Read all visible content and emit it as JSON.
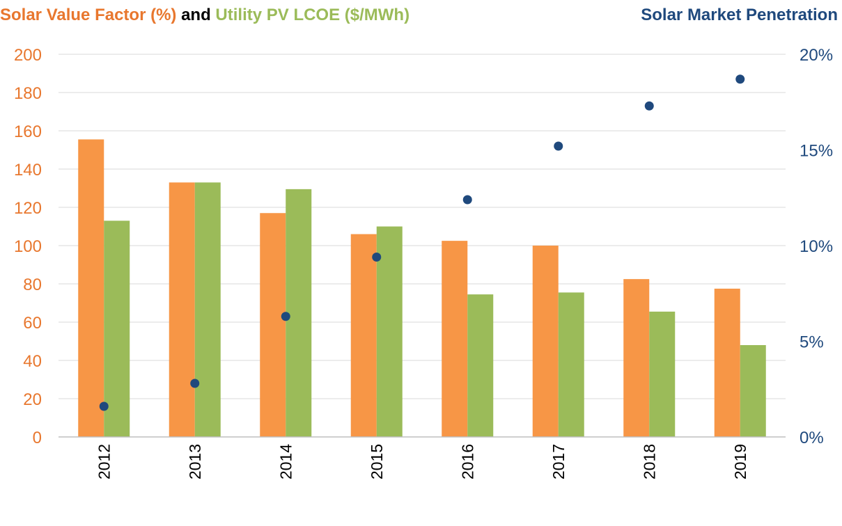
{
  "chart_data": {
    "type": "bar",
    "title_left": [
      {
        "text": "Solar Value Factor (%)",
        "color": "#E8772E"
      },
      {
        "text": " and ",
        "color": "#000000"
      },
      {
        "text": "Utility PV LCOE ($/MWh)",
        "color": "#9BBB59"
      }
    ],
    "title_right": {
      "text": "Solar Market Penetration",
      "color": "#1F497D"
    },
    "categories": [
      "2012",
      "2013",
      "2014",
      "2015",
      "2016",
      "2017",
      "2018",
      "2019"
    ],
    "series": [
      {
        "name": "Solar Value Factor (%)",
        "type": "bar",
        "axis": "left",
        "color": "#F79646",
        "values": [
          155.5,
          133,
          117,
          106,
          102.5,
          100,
          82.5,
          77.5
        ]
      },
      {
        "name": "Utility PV LCOE ($/MWh)",
        "type": "bar",
        "axis": "left",
        "color": "#9BBB59",
        "values": [
          113,
          133,
          129.5,
          110,
          74.5,
          75.5,
          65.5,
          48
        ]
      },
      {
        "name": "Solar Market Penetration",
        "type": "scatter",
        "axis": "right",
        "color": "#1F497D",
        "values": [
          1.6,
          2.8,
          6.3,
          9.4,
          12.4,
          15.2,
          17.3,
          18.7
        ]
      }
    ],
    "y_left": {
      "range": [
        0,
        200
      ],
      "ticks": [
        0,
        20,
        40,
        60,
        80,
        100,
        120,
        140,
        160,
        180,
        200
      ],
      "color": "#E8772E"
    },
    "y_right": {
      "range": [
        0,
        20
      ],
      "ticks": [
        0,
        5,
        10,
        15,
        20
      ],
      "tick_labels": [
        "0%",
        "5%",
        "10%",
        "15%",
        "20%"
      ],
      "color": "#1F497D"
    },
    "grid": true,
    "gridline_color": "#D9D9D9",
    "legend": "none"
  }
}
